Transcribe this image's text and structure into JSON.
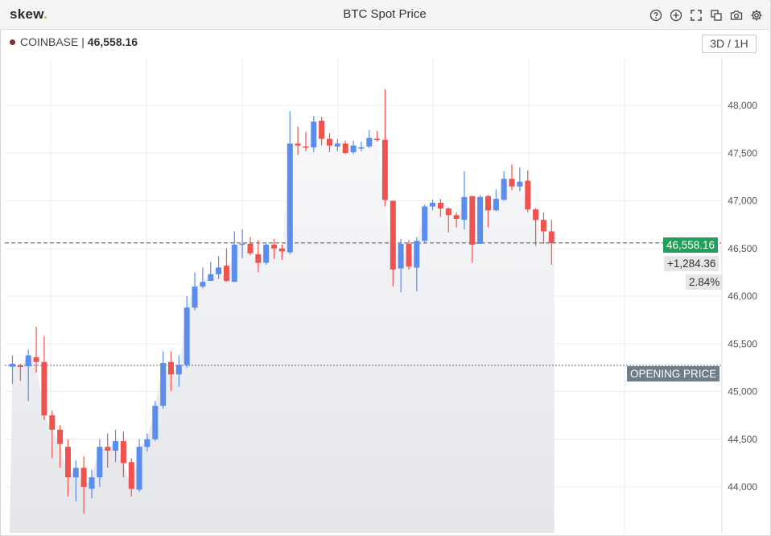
{
  "header": {
    "logo_text": "skew",
    "logo_dot": ".",
    "title": "BTC Spot Price"
  },
  "toolbar": {
    "icons": [
      "help-icon",
      "zoom-in-icon",
      "fullscreen-icon",
      "duplicate-icon",
      "camera-icon",
      "gear-icon"
    ]
  },
  "legend": {
    "exchange": "COINBASE",
    "separator": " | ",
    "price": "46,558.16"
  },
  "timeframe": "3D / 1H",
  "tags": {
    "last_price": "46,558.16",
    "change": "+1,284.36",
    "change_pct": "2.84%",
    "opening_label": "OPENING PRICE"
  },
  "colors": {
    "up": "#5b8def",
    "down": "#ef5350",
    "last_tag": "#21a05a",
    "open_tag": "#6d7d8a"
  },
  "chart_data": {
    "type": "candlestick",
    "y_ticks": [
      "44,000",
      "44,500",
      "45,000",
      "45,500",
      "46,000",
      "46,500",
      "47,000",
      "47,500",
      "48,000"
    ],
    "y_tick_values": [
      44000,
      44500,
      45000,
      45500,
      46000,
      46500,
      47000,
      47500,
      48000
    ],
    "ylim": [
      43500,
      48500
    ],
    "last_price": 46558.16,
    "opening_price": 45273.8,
    "candles": [
      [
        45260,
        45290,
        45080,
        45380
      ],
      [
        45270,
        45260,
        45110,
        45290
      ],
      [
        45265,
        45380,
        44900,
        45440
      ],
      [
        45360,
        45310,
        45200,
        45680
      ],
      [
        45310,
        44750,
        44700,
        45580
      ],
      [
        44750,
        44600,
        44300,
        44800
      ],
      [
        44600,
        44450,
        44200,
        44650
      ],
      [
        44420,
        44100,
        43900,
        44500
      ],
      [
        44100,
        44200,
        43850,
        44280
      ],
      [
        44200,
        44000,
        43720,
        44320
      ],
      [
        43980,
        44100,
        43880,
        44180
      ],
      [
        44100,
        44420,
        44000,
        44500
      ],
      [
        44420,
        44380,
        44200,
        44560
      ],
      [
        44380,
        44480,
        44260,
        44600
      ],
      [
        44480,
        44250,
        44100,
        44580
      ],
      [
        44260,
        43980,
        43900,
        44300
      ],
      [
        43970,
        44420,
        43950,
        44500
      ],
      [
        44420,
        44500,
        44370,
        44560
      ],
      [
        44500,
        44850,
        44480,
        44900
      ],
      [
        44850,
        45300,
        44820,
        45420
      ],
      [
        45310,
        45180,
        45000,
        45420
      ],
      [
        45180,
        45280,
        45050,
        45380
      ],
      [
        45280,
        45880,
        45250,
        46000
      ],
      [
        45880,
        46100,
        45850,
        46250
      ],
      [
        46100,
        46150,
        46080,
        46300
      ],
      [
        46160,
        46230,
        46160,
        46360
      ],
      [
        46230,
        46300,
        46180,
        46420
      ],
      [
        46320,
        46160,
        46150,
        46500
      ],
      [
        46150,
        46540,
        46150,
        46680
      ],
      [
        46540,
        46550,
        46400,
        46700
      ],
      [
        46550,
        46450,
        46430,
        46620
      ],
      [
        46440,
        46350,
        46250,
        46590
      ],
      [
        46350,
        46540,
        46330,
        46560
      ],
      [
        46540,
        46500,
        46390,
        46600
      ],
      [
        46500,
        46470,
        46380,
        46540
      ],
      [
        46460,
        47600,
        46440,
        47940
      ],
      [
        47600,
        47580,
        47480,
        47780
      ],
      [
        47570,
        47560,
        47520,
        47720
      ],
      [
        47560,
        47830,
        47510,
        47890
      ],
      [
        47840,
        47650,
        47580,
        47880
      ],
      [
        47650,
        47580,
        47510,
        47710
      ],
      [
        47570,
        47600,
        47520,
        47650
      ],
      [
        47600,
        47500,
        47490,
        47630
      ],
      [
        47510,
        47580,
        47490,
        47630
      ],
      [
        47560,
        47560,
        47520,
        47620
      ],
      [
        47570,
        47660,
        47550,
        47740
      ],
      [
        47650,
        47640,
        47620,
        47730
      ],
      [
        47640,
        47010,
        46940,
        48170
      ],
      [
        47000,
        46280,
        46100,
        47000
      ],
      [
        46290,
        46550,
        46040,
        46600
      ],
      [
        46550,
        46310,
        46280,
        46590
      ],
      [
        46300,
        46580,
        46050,
        46620
      ],
      [
        46580,
        46940,
        46550,
        46960
      ],
      [
        46940,
        46980,
        46900,
        47010
      ],
      [
        46980,
        46920,
        46830,
        47020
      ],
      [
        46920,
        46850,
        46670,
        46930
      ],
      [
        46850,
        46810,
        46720,
        46880
      ],
      [
        46800,
        47040,
        46700,
        47310
      ],
      [
        47050,
        46540,
        46350,
        47050
      ],
      [
        46550,
        47040,
        46550,
        47060
      ],
      [
        47050,
        46900,
        46720,
        47060
      ],
      [
        46900,
        47020,
        46890,
        47120
      ],
      [
        47010,
        47230,
        47000,
        47310
      ],
      [
        47230,
        47150,
        47110,
        47380
      ],
      [
        47150,
        47200,
        47100,
        47350
      ],
      [
        47210,
        46910,
        46880,
        47320
      ],
      [
        46910,
        46800,
        46530,
        46920
      ],
      [
        46800,
        46680,
        46550,
        46880
      ],
      [
        46680,
        46558,
        46330,
        46800
      ]
    ]
  }
}
